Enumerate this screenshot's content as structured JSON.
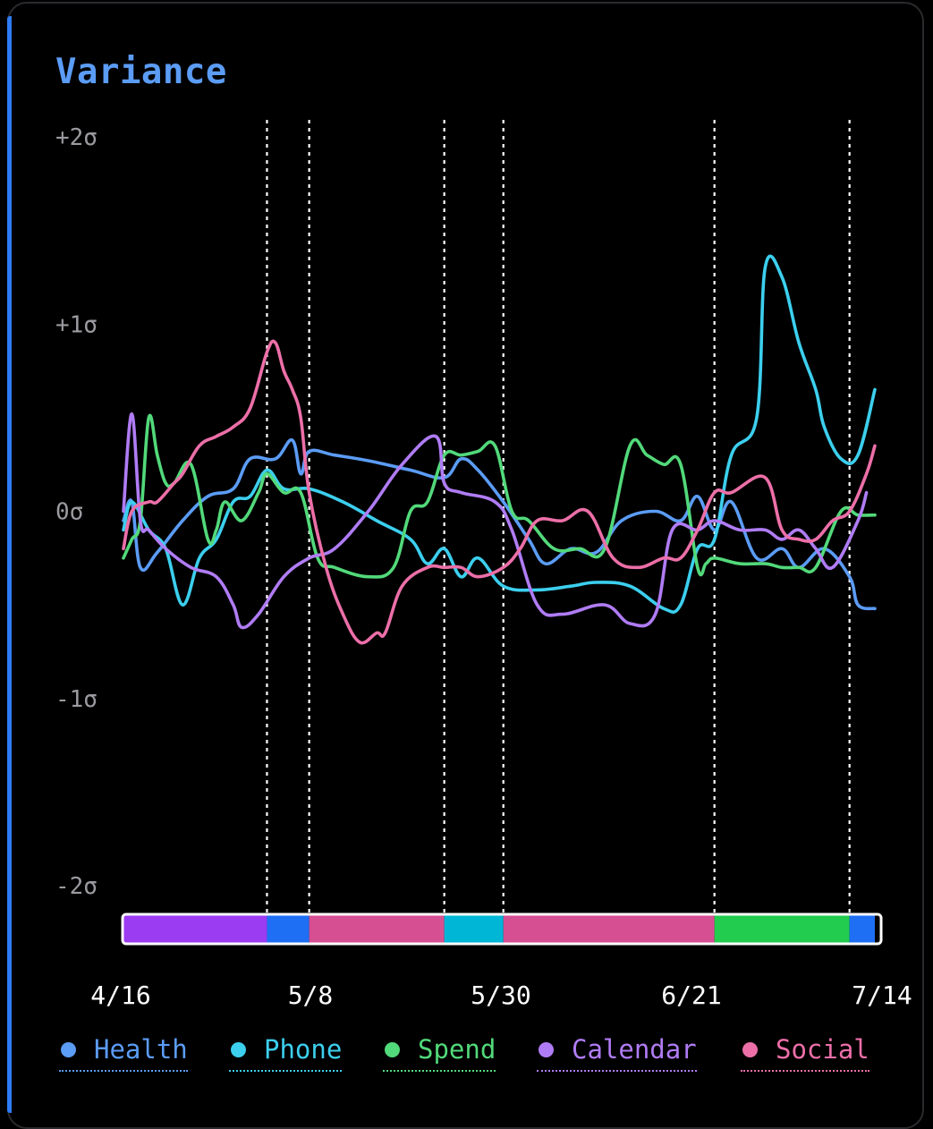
{
  "title": "Variance",
  "chart_data": {
    "type": "line",
    "title": "Variance",
    "y_ticks": [
      "+2σ",
      "+1σ",
      "0σ",
      "-1σ",
      "-2σ"
    ],
    "ylim": [
      -2,
      2
    ],
    "x_ticks": [
      "4/16",
      "5/8",
      "5/30",
      "6/21",
      "7/14"
    ],
    "xlim": [
      "4/16",
      "7/14"
    ],
    "event_markers": [
      "5/3",
      "5/8",
      "5/24",
      "5/31",
      "6/25",
      "7/11"
    ],
    "timeline_segments": [
      {
        "start": "4/16",
        "end": "5/3",
        "series": "Calendar"
      },
      {
        "start": "5/3",
        "end": "5/8",
        "series": "Health"
      },
      {
        "start": "5/8",
        "end": "5/24",
        "series": "Social"
      },
      {
        "start": "5/24",
        "end": "5/31",
        "series": "Phone"
      },
      {
        "start": "5/31",
        "end": "6/25",
        "series": "Social"
      },
      {
        "start": "6/25",
        "end": "7/11",
        "series": "Spend"
      },
      {
        "start": "7/11",
        "end": "7/14",
        "series": "Health"
      }
    ],
    "series": [
      {
        "name": "Health",
        "color": "#5b9cf5",
        "x": [
          "4/16",
          "4/17",
          "4/18",
          "4/20",
          "4/23",
          "4/26",
          "4/29",
          "5/1",
          "5/4",
          "5/6",
          "5/7",
          "5/8",
          "5/11",
          "5/15",
          "5/20",
          "5/24",
          "5/26",
          "5/28",
          "5/31",
          "6/3",
          "6/5",
          "6/8",
          "6/11",
          "6/14",
          "6/18",
          "6/21",
          "6/23",
          "6/25",
          "6/27",
          "6/30",
          "7/3",
          "7/5",
          "7/8",
          "7/11",
          "7/12",
          "7/14"
        ],
        "values": [
          -0.05,
          0.05,
          -0.3,
          -0.22,
          -0.05,
          0.08,
          0.12,
          0.28,
          0.28,
          0.38,
          0.2,
          0.32,
          0.3,
          0.27,
          0.22,
          0.18,
          0.28,
          0.22,
          0.05,
          -0.15,
          -0.28,
          -0.2,
          -0.22,
          -0.05,
          0,
          -0.05,
          0.08,
          -0.1,
          0.05,
          -0.25,
          -0.2,
          -0.3,
          -0.2,
          -0.35,
          -0.5,
          -0.52
        ]
      },
      {
        "name": "Phone",
        "color": "#3ccfee",
        "x": [
          "4/16",
          "4/17",
          "4/19",
          "4/21",
          "4/23",
          "4/25",
          "4/27",
          "4/29",
          "5/1",
          "5/3",
          "5/5",
          "5/8",
          "5/12",
          "5/16",
          "5/20",
          "5/22",
          "5/24",
          "5/26",
          "5/28",
          "5/31",
          "6/4",
          "6/8",
          "6/11",
          "6/15",
          "6/19",
          "6/21",
          "6/23",
          "6/25",
          "6/27",
          "6/30",
          "7/1",
          "7/3",
          "7/5",
          "7/7",
          "7/8",
          "7/10",
          "7/12",
          "7/14"
        ],
        "values": [
          -0.1,
          0.05,
          -0.1,
          -0.2,
          -0.5,
          -0.25,
          -0.15,
          0.05,
          0.08,
          0.22,
          0.12,
          0.12,
          0.05,
          -0.05,
          -0.15,
          -0.28,
          -0.2,
          -0.35,
          -0.25,
          -0.4,
          -0.42,
          -0.4,
          -0.38,
          -0.4,
          -0.52,
          -0.5,
          -0.2,
          -0.15,
          0.3,
          0.5,
          1.3,
          1.25,
          0.9,
          0.65,
          0.45,
          0.28,
          0.3,
          0.65
        ]
      },
      {
        "name": "Spend",
        "color": "#52d97a",
        "x": [
          "4/16",
          "4/17",
          "4/18",
          "4/19",
          "4/20",
          "4/21",
          "4/22",
          "4/24",
          "4/26",
          "4/27",
          "4/28",
          "4/30",
          "5/2",
          "5/3",
          "5/5",
          "5/7",
          "5/9",
          "5/11",
          "5/15",
          "5/18",
          "5/20",
          "5/22",
          "5/24",
          "5/26",
          "5/28",
          "5/30",
          "6/1",
          "6/3",
          "6/6",
          "6/9",
          "6/12",
          "6/15",
          "6/17",
          "6/19",
          "6/21",
          "6/23",
          "6/24",
          "6/25",
          "6/28",
          "7/1",
          "7/3",
          "7/5",
          "7/7",
          "7/10",
          "7/12",
          "7/14"
        ],
        "values": [
          -0.25,
          -0.15,
          -0.05,
          0.5,
          0.3,
          0.15,
          0.15,
          0.25,
          -0.15,
          -0.1,
          0.05,
          -0.05,
          0.1,
          0.2,
          0.1,
          0.1,
          -0.25,
          -0.3,
          -0.35,
          -0.3,
          0,
          0.05,
          0.3,
          0.3,
          0.32,
          0.35,
          0,
          -0.05,
          -0.2,
          -0.2,
          -0.2,
          0.35,
          0.3,
          0.25,
          0.25,
          -0.3,
          -0.28,
          -0.25,
          -0.28,
          -0.28,
          -0.3,
          -0.3,
          -0.3,
          0,
          -0.02,
          -0.02
        ]
      },
      {
        "name": "Calendar",
        "color": "#b07cf5",
        "x": [
          "4/16",
          "4/17",
          "4/18",
          "4/19",
          "4/21",
          "4/24",
          "4/27",
          "4/29",
          "4/30",
          "5/2",
          "5/5",
          "5/8",
          "5/11",
          "5/15",
          "5/19",
          "5/23",
          "5/24",
          "5/26",
          "5/30",
          "6/1",
          "6/4",
          "6/7",
          "6/12",
          "6/15",
          "6/18",
          "6/20",
          "6/23",
          "6/25",
          "6/28",
          "7/1",
          "7/3",
          "7/5",
          "7/7",
          "7/9",
          "7/12",
          "7/13"
        ],
        "values": [
          0,
          0.52,
          -0.05,
          -0.1,
          -0.2,
          -0.3,
          -0.35,
          -0.5,
          -0.62,
          -0.55,
          -0.35,
          -0.25,
          -0.2,
          0,
          0.25,
          0.4,
          0.15,
          0.1,
          0.05,
          -0.1,
          -0.5,
          -0.55,
          -0.5,
          -0.6,
          -0.55,
          -0.1,
          -0.1,
          -0.05,
          -0.1,
          -0.1,
          -0.15,
          -0.1,
          -0.2,
          -0.3,
          -0.05,
          0.1
        ]
      },
      {
        "name": "Social",
        "color": "#ec6fa8",
        "x": [
          "4/16",
          "4/17",
          "4/19",
          "4/20",
          "4/22",
          "4/23",
          "4/25",
          "4/27",
          "4/29",
          "5/1",
          "5/3",
          "5/4",
          "5/5",
          "5/6",
          "5/7",
          "5/8",
          "5/10",
          "5/12",
          "5/14",
          "5/16",
          "5/17",
          "5/19",
          "5/22",
          "5/24",
          "5/26",
          "5/28",
          "5/31",
          "6/2",
          "6/4",
          "6/7",
          "6/10",
          "6/13",
          "6/16",
          "6/19",
          "6/21",
          "6/23",
          "6/25",
          "6/27",
          "7/1",
          "7/3",
          "7/5",
          "7/7",
          "7/9",
          "7/11",
          "7/13",
          "7/14"
        ],
        "values": [
          -0.2,
          0,
          0.05,
          0.05,
          0.15,
          0.2,
          0.35,
          0.4,
          0.45,
          0.55,
          0.85,
          0.9,
          0.75,
          0.65,
          0.5,
          0.1,
          -0.3,
          -0.55,
          -0.7,
          -0.65,
          -0.65,
          -0.4,
          -0.3,
          -0.3,
          -0.3,
          -0.35,
          -0.3,
          -0.2,
          -0.05,
          -0.05,
          0,
          -0.25,
          -0.3,
          -0.25,
          -0.25,
          -0.1,
          0.1,
          0.1,
          0.18,
          -0.1,
          -0.15,
          -0.15,
          -0.05,
          0,
          0.2,
          0.35
        ]
      }
    ]
  }
}
